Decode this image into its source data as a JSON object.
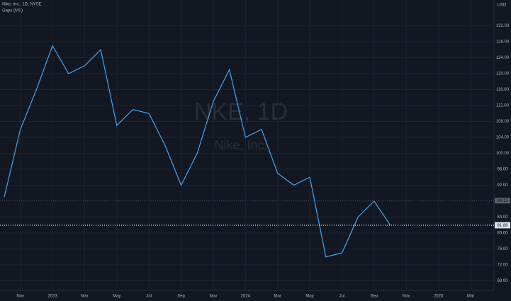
{
  "chart_data": {
    "type": "line",
    "title": "Nike, Inc., 1D, NYSE",
    "subtitle": "Gaps (MS)",
    "watermark": "NKE, 1D",
    "watermark_subtitle": "Nike, Inc.",
    "ylabel": "USD",
    "categories": [
      null,
      "Nov",
      null,
      "2023",
      null,
      "Mar",
      null,
      "May",
      null,
      "Jul",
      null,
      "Sep",
      null,
      "Nov",
      null,
      "2024",
      null,
      "Mar",
      null,
      "May",
      null,
      "Jul",
      null,
      "Sep",
      null,
      "Nov",
      null,
      "2025",
      null,
      "Mar"
    ],
    "series": [
      {
        "color": "#42a5f5",
        "values": [
          89,
          106,
          116,
          127,
          120,
          122,
          126,
          107,
          111,
          110,
          102,
          92,
          100,
          113,
          121,
          104,
          106,
          95,
          92,
          94,
          74,
          75,
          84,
          88,
          82,
          null,
          null,
          null,
          null,
          null
        ]
      }
    ],
    "ylim": [
      64,
      136
    ],
    "yticks": [
      {
        "value": 68,
        "label": "68.00"
      },
      {
        "value": 72,
        "label": "72.00"
      },
      {
        "value": 76,
        "label": "76.00"
      },
      {
        "value": 80,
        "label": "80.00"
      },
      {
        "value": 84,
        "label": "84.00"
      },
      {
        "value": 88,
        "label": "88.00"
      },
      {
        "value": 92,
        "label": "92.00"
      },
      {
        "value": 96,
        "label": "96.00"
      },
      {
        "value": 100,
        "label": "100.00"
      },
      {
        "value": 104,
        "label": "104.00"
      },
      {
        "value": 108,
        "label": "108.00"
      },
      {
        "value": 112,
        "label": "112.00"
      },
      {
        "value": 116,
        "label": "116.00"
      },
      {
        "value": 120,
        "label": "120.00"
      },
      {
        "value": 124,
        "label": "124.00"
      },
      {
        "value": 128,
        "label": "128.00"
      },
      {
        "value": 132,
        "label": "132.00"
      }
    ],
    "grid": true,
    "price_markers": [
      {
        "value": 88.13,
        "color": "#5d606b"
      },
      {
        "value": 82.02,
        "color": "#e0e3eb"
      },
      {
        "value": 81.88,
        "color": "#e0e3eb"
      }
    ]
  }
}
